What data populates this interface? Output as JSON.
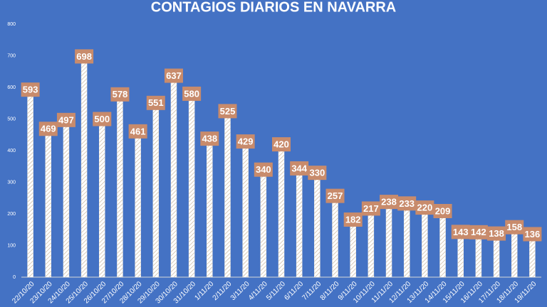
{
  "chart_data": {
    "type": "bar",
    "title": "CONTAGIOS DIARIOS EN NAVARRA",
    "categories": [
      "22/10/20",
      "23/10/20",
      "24/10/20",
      "25/10/20",
      "26/10/20",
      "27/10/20",
      "28/10/20",
      "29/10/20",
      "30/10/20",
      "31/10/20",
      "1/11/20",
      "2/11/20",
      "3/11/20",
      "4/11/20",
      "5/11/20",
      "6/11/20",
      "7/11/20",
      "8/11/20",
      "9/11/20",
      "10/11/20",
      "11/11/20",
      "12/11/20",
      "13/11/20",
      "14/11/20",
      "15/11/20",
      "16/11/20",
      "17/11/20",
      "18/11/20",
      "19/11/20"
    ],
    "values": [
      593,
      469,
      497,
      698,
      500,
      578,
      461,
      551,
      637,
      580,
      438,
      525,
      429,
      340,
      420,
      344,
      330,
      257,
      182,
      217,
      238,
      233,
      220,
      209,
      143,
      142,
      138,
      158,
      136
    ],
    "color": "#f2ebe0",
    "label_color": "#c88b6c",
    "ylim": [
      0,
      800
    ],
    "yticks": [
      0,
      100,
      200,
      300,
      400,
      500,
      600,
      700,
      800
    ]
  }
}
